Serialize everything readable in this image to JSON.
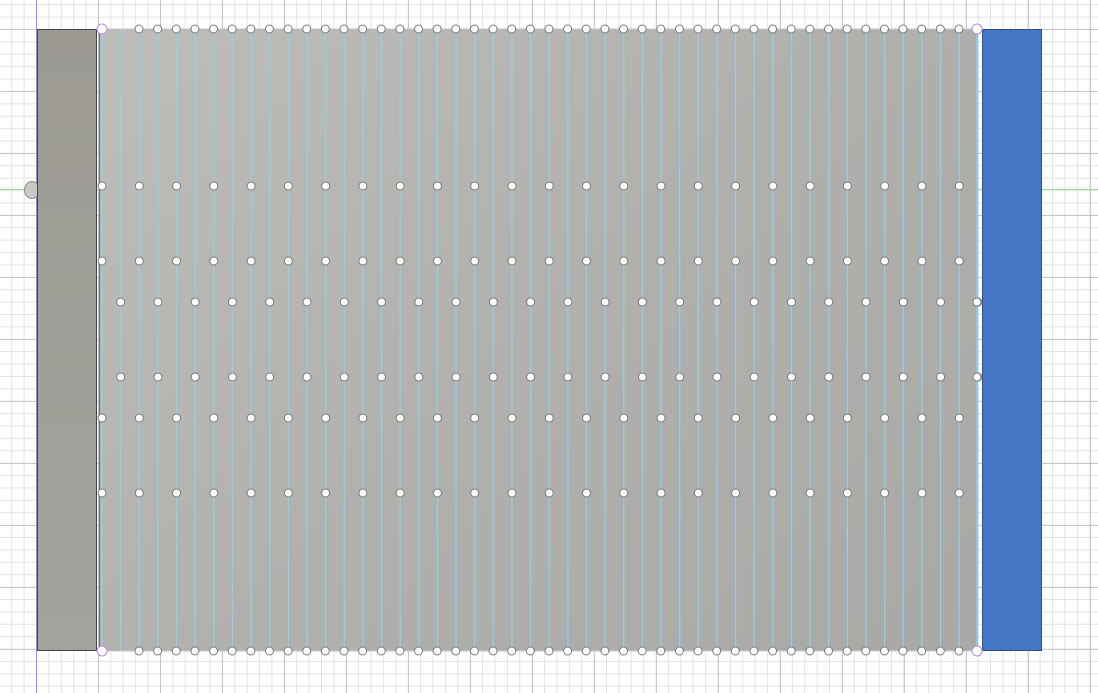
{
  "canvas": {
    "background": "#ffffff",
    "grid_major_color": "#aaaaaa",
    "grid_minor_color": "#cdcdcd"
  },
  "axes": {
    "x_axis_color": "#9be39b",
    "y_axis_color": "#8a8af0"
  },
  "bodies": {
    "left_body_color": "#9e9d97",
    "right_body_color": "#4677c6",
    "sheet_color": "#b4b3b0"
  },
  "sketch": {
    "construction_line_color": "#8fd0ee",
    "point_fill": "#ffffff",
    "point_stroke": "#7a7a7a",
    "corner_point_color": "#b38ce6",
    "edge_line_color": "#d8d8d8",
    "icons": [
      "origin-icon",
      "sketch-point-icon",
      "construction-line-icon",
      "corner-point-icon"
    ]
  }
}
